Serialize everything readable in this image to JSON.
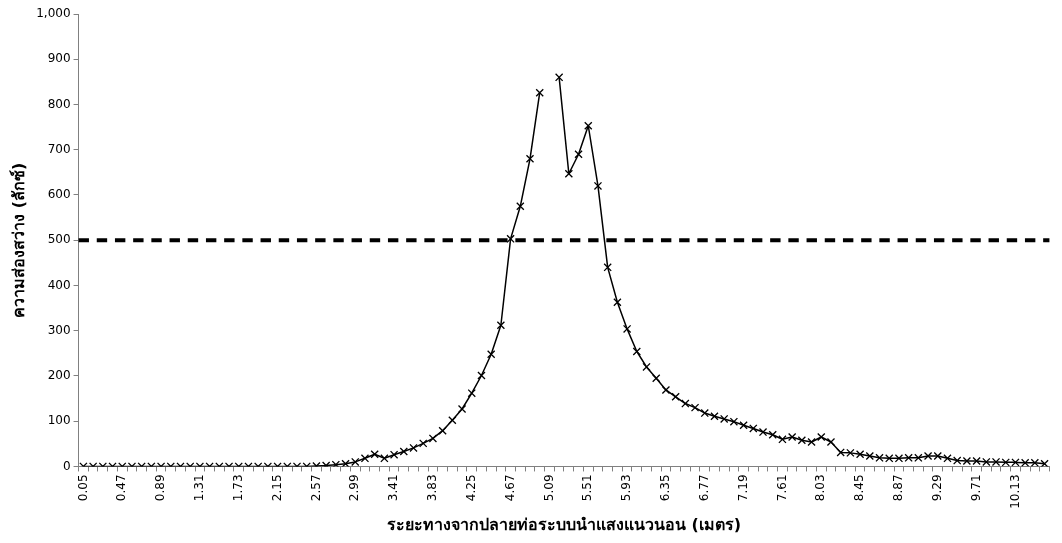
{
  "chart_data": {
    "type": "line",
    "xlabel": "ระยะทางจากปลายท่อระบบนำแสงแนวนอน (เมตร)",
    "ylabel": "ความส่องสว่าง (ลักซ์)",
    "categories": [
      "0.05",
      null,
      null,
      null,
      "0.47",
      null,
      null,
      null,
      "0.89",
      null,
      null,
      null,
      "1.31",
      null,
      null,
      null,
      "1.73",
      null,
      null,
      null,
      "2.15",
      null,
      null,
      null,
      "2.57",
      null,
      null,
      null,
      "2.99",
      null,
      null,
      null,
      "3.41",
      null,
      null,
      null,
      "3.83",
      null,
      null,
      null,
      "4.25",
      null,
      null,
      null,
      "4.67",
      null,
      null,
      null,
      "5.09",
      null,
      null,
      null,
      "5.51",
      null,
      null,
      null,
      "5.93",
      null,
      null,
      null,
      "6.35",
      null,
      null,
      null,
      "6.77",
      null,
      null,
      null,
      "7.19",
      null,
      null,
      null,
      "7.61",
      null,
      null,
      null,
      "8.03",
      null,
      null,
      null,
      "8.45",
      null,
      null,
      null,
      "8.87",
      null,
      null,
      null,
      "9.29",
      null,
      null,
      null,
      "9.71",
      null,
      null,
      null,
      "10.13",
      null,
      null,
      null
    ],
    "series": [
      {
        "color": "#000000",
        "values": [
          0,
          0,
          0,
          0,
          0,
          0,
          0,
          0,
          0,
          0,
          0,
          0,
          0,
          0,
          0,
          0,
          0,
          0,
          0,
          0,
          0,
          0,
          0,
          0,
          1,
          2,
          4,
          6,
          10,
          18,
          27,
          18,
          26,
          33,
          41,
          51,
          62,
          79,
          102,
          127,
          162,
          201,
          248,
          312,
          503,
          575,
          680,
          826,
          null,
          860,
          647,
          690,
          753,
          620,
          440,
          363,
          304,
          254,
          220,
          195,
          169,
          154,
          139,
          130,
          118,
          111,
          105,
          99,
          91,
          84,
          76,
          70,
          60,
          65,
          58,
          54,
          65,
          54,
          31,
          30,
          27,
          23,
          19,
          18,
          18,
          19,
          19,
          23,
          23,
          18,
          13,
          12,
          12,
          10,
          10,
          9,
          9,
          8,
          8,
          6
        ]
      }
    ],
    "ylim": [
      0,
      1000
    ],
    "yticks": [
      0,
      100,
      200,
      300,
      400,
      500,
      600,
      700,
      800,
      900,
      {
        "value": 1000,
        "label": "1,000"
      }
    ],
    "ref_lines": [
      {
        "axis": "y",
        "value": 500,
        "color": "#000000",
        "line_style": "dashed"
      }
    ],
    "marker": "cross",
    "line_style": "solid",
    "grid": false,
    "legend": false
  }
}
